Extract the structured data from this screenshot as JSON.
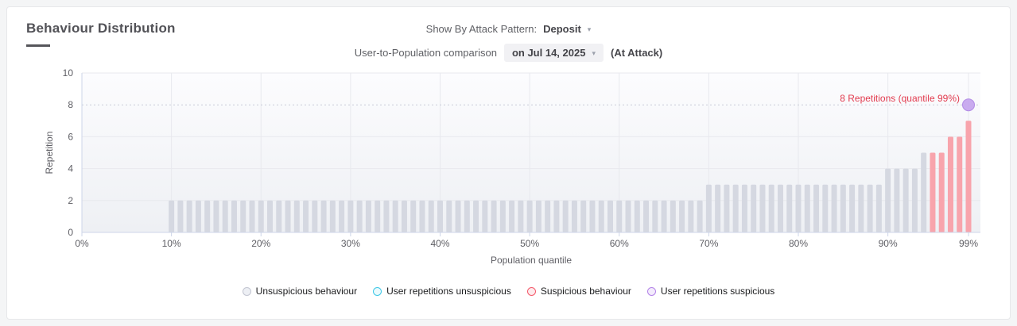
{
  "panel": {
    "title": "Behaviour Distribution"
  },
  "icons": {
    "caret_down": "▾"
  },
  "controls": {
    "attack_pattern_label": "Show By Attack Pattern:",
    "attack_pattern_value": "Deposit",
    "comparison_label": "User-to-Population comparison",
    "comparison_date_value": "on Jul 14, 2025",
    "comparison_suffix": "(At Attack)"
  },
  "chart_data": {
    "type": "bar",
    "title": "",
    "xlabel": "Population quantile",
    "ylabel": "Repetition",
    "ylim": [
      0,
      10
    ],
    "y_ticks": [
      0,
      2,
      4,
      6,
      8,
      10
    ],
    "x_tick_quantiles": [
      0,
      10,
      20,
      30,
      40,
      50,
      60,
      70,
      80,
      90,
      99
    ],
    "x_tick_labels": [
      "0%",
      "10%",
      "20%",
      "30%",
      "40%",
      "50%",
      "60%",
      "70%",
      "80%",
      "90%",
      "99%"
    ],
    "grid": true,
    "legend_position": "bottom",
    "bars": {
      "start_quantile": 10,
      "values": [
        2,
        2,
        2,
        2,
        2,
        2,
        2,
        2,
        2,
        2,
        2,
        2,
        2,
        2,
        2,
        2,
        2,
        2,
        2,
        2,
        2,
        2,
        2,
        2,
        2,
        2,
        2,
        2,
        2,
        2,
        2,
        2,
        2,
        2,
        2,
        2,
        2,
        2,
        2,
        2,
        2,
        2,
        2,
        2,
        2,
        2,
        2,
        2,
        2,
        2,
        2,
        2,
        2,
        2,
        2,
        2,
        2,
        2,
        2,
        2,
        3,
        3,
        3,
        3,
        3,
        3,
        3,
        3,
        3,
        3,
        3,
        3,
        3,
        3,
        3,
        3,
        3,
        3,
        3,
        3,
        4,
        4,
        4,
        4,
        5,
        5,
        5,
        6,
        6,
        7
      ],
      "suspicious_from_quantile": 95
    },
    "user_marker": {
      "quantile": 99,
      "value": 8,
      "label": "8 Repetitions (quantile 99%)"
    },
    "reference_line_value": 8,
    "legend": [
      {
        "label": "Unsuspicious behaviour",
        "color": "#c2c5d1",
        "fill": "#edeff4"
      },
      {
        "label": "User repetitions unsuspicious",
        "color": "#3ec7e6",
        "fill": "#eafafd"
      },
      {
        "label": "Suspicious behaviour",
        "color": "#f45a6b",
        "fill": "#fdeaec"
      },
      {
        "label": "User repetitions suspicious",
        "color": "#b383e8",
        "fill": "#f3ebfc"
      }
    ],
    "colors": {
      "unsuspicious_bar": "#d5d8e1",
      "suspicious_bar": "#f8a4ac",
      "marker_fill": "#c6a6ee",
      "marker_stroke": "#b28ce6",
      "annotation_text": "#e23b4f",
      "axis_line": "#cdd5e8",
      "gridline": "#e8e9ee",
      "reference_dotted": "#c9cbd8",
      "tick_text": "#5e5e64",
      "bg_top": "#fcfcfe",
      "bg_bottom": "#eef0f4"
    }
  }
}
